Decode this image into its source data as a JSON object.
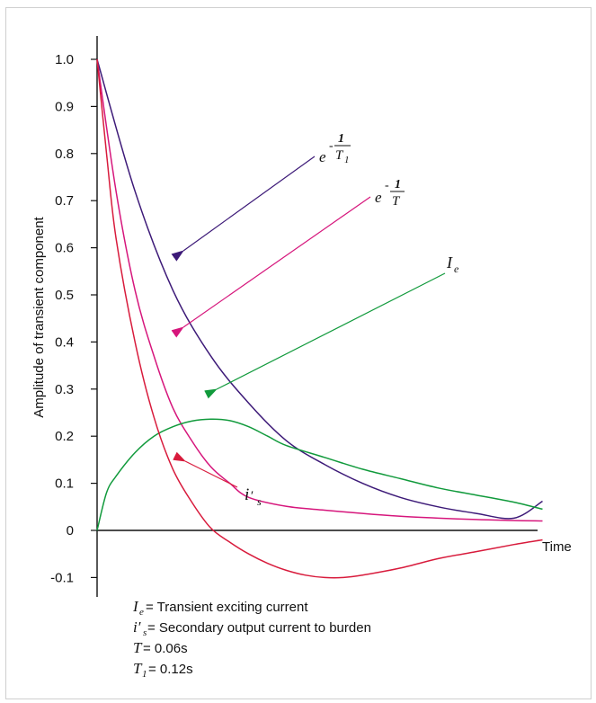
{
  "chart_data": {
    "type": "line",
    "xlabel": "Time",
    "ylabel": "Amplitude of transient component",
    "ylim": [
      -0.12,
      1.05
    ],
    "xlim": [
      0,
      0.48
    ],
    "y_ticks": [
      "1.0",
      "0.9",
      "0.8",
      "0.7",
      "0.6",
      "0.5",
      "0.4",
      "0.3",
      "0.2",
      "0.1",
      "0",
      "-0.1"
    ],
    "x_ticks": [],
    "grid": false,
    "series": [
      {
        "color": "#3d1a78",
        "x": [
          0,
          0.04,
          0.08,
          0.12,
          0.16,
          0.2,
          0.24,
          0.28,
          0.32,
          0.36,
          0.4,
          0.44,
          0.47
        ],
        "y": [
          1.0,
          0.72,
          0.51,
          0.37,
          0.27,
          0.19,
          0.14,
          0.1,
          0.07,
          0.05,
          0.036,
          0.026,
          0.062
        ]
      },
      {
        "color": "#d6167c",
        "x": [
          0,
          0.02,
          0.04,
          0.06,
          0.08,
          0.1,
          0.12,
          0.14,
          0.16,
          0.2,
          0.24,
          0.28,
          0.32,
          0.36,
          0.4,
          0.44,
          0.47
        ],
        "y": [
          1.0,
          0.72,
          0.51,
          0.37,
          0.26,
          0.19,
          0.135,
          0.1,
          0.07,
          0.051,
          0.043,
          0.036,
          0.03,
          0.026,
          0.023,
          0.021,
          0.02
        ]
      },
      {
        "color": "#119a3c",
        "x": [
          0,
          0.01,
          0.02,
          0.04,
          0.06,
          0.08,
          0.1,
          0.12,
          0.14,
          0.16,
          0.18,
          0.2,
          0.24,
          0.28,
          0.32,
          0.36,
          0.4,
          0.44,
          0.47
        ],
        "y": [
          0,
          0.08,
          0.115,
          0.165,
          0.2,
          0.22,
          0.232,
          0.236,
          0.233,
          0.22,
          0.2,
          0.18,
          0.155,
          0.13,
          0.11,
          0.09,
          0.075,
          0.06,
          0.045
        ]
      },
      {
        "color": "#d81b3c",
        "x": [
          0,
          0.01,
          0.02,
          0.04,
          0.06,
          0.08,
          0.1,
          0.12,
          0.14,
          0.16,
          0.18,
          0.2,
          0.22,
          0.24,
          0.26,
          0.28,
          0.32,
          0.36,
          0.4,
          0.44,
          0.47
        ],
        "y": [
          1.0,
          0.8,
          0.62,
          0.4,
          0.24,
          0.13,
          0.06,
          0.005,
          -0.025,
          -0.05,
          -0.07,
          -0.085,
          -0.095,
          -0.1,
          -0.1,
          -0.095,
          -0.08,
          -0.06,
          -0.045,
          -0.03,
          -0.02
        ]
      }
    ],
    "annotations": {
      "t1_curve": {
        "base": "e",
        "exp_sign": "-",
        "exp_num": "1",
        "exp_den": "T",
        "exp_den_sub": "1"
      },
      "t_curve": {
        "base": "e",
        "exp_sign": "-",
        "exp_num": "1",
        "exp_den": "T"
      },
      "ie": {
        "main": "I",
        "sub": "e"
      },
      "is": {
        "main": "i",
        "prime": "′",
        "sub": "s"
      }
    }
  },
  "legend": [
    {
      "symbol": "I",
      "sub": "e",
      "text": " = Transient exciting current"
    },
    {
      "symbol": "i′",
      "sub": "s",
      "text": " = Secondary output current to burden"
    },
    {
      "symbol": "T",
      "sub": "",
      "text": " = 0.06s"
    },
    {
      "symbol": "T",
      "sub": "1",
      "text": " = 0.12s"
    }
  ]
}
